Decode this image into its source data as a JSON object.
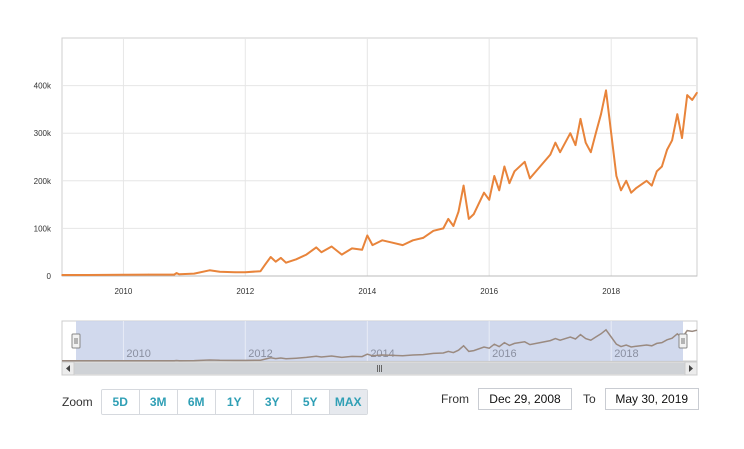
{
  "chart_data": {
    "type": "line",
    "title": "",
    "xlabel": "",
    "ylabel": "",
    "x_range": [
      "2008-12-29",
      "2019-05-30"
    ],
    "ylim": [
      0,
      500000
    ],
    "y_ticks": [
      {
        "value": 0,
        "label": "0"
      },
      {
        "value": 100000,
        "label": "100k"
      },
      {
        "value": 200000,
        "label": "200k"
      },
      {
        "value": 300000,
        "label": "300k"
      },
      {
        "value": 400000,
        "label": "400k"
      }
    ],
    "x_ticks": [
      {
        "value": "2010-01-01",
        "label": "2010"
      },
      {
        "value": "2012-01-01",
        "label": "2012"
      },
      {
        "value": "2014-01-01",
        "label": "2014"
      },
      {
        "value": "2016-01-01",
        "label": "2016"
      },
      {
        "value": "2018-01-01",
        "label": "2018"
      }
    ],
    "grid": true,
    "series": [
      {
        "color": "#e8843b",
        "points": [
          [
            "2008-12-29",
            2000
          ],
          [
            "2009-06-01",
            2000
          ],
          [
            "2010-01-01",
            2500
          ],
          [
            "2010-06-01",
            3000
          ],
          [
            "2010-11-01",
            3000
          ],
          [
            "2010-11-15",
            6000
          ],
          [
            "2010-12-01",
            3500
          ],
          [
            "2011-03-01",
            5000
          ],
          [
            "2011-06-01",
            12000
          ],
          [
            "2011-08-01",
            9000
          ],
          [
            "2011-11-01",
            8000
          ],
          [
            "2012-01-01",
            8000
          ],
          [
            "2012-04-01",
            10000
          ],
          [
            "2012-05-01",
            25000
          ],
          [
            "2012-06-01",
            40000
          ],
          [
            "2012-07-01",
            30000
          ],
          [
            "2012-08-01",
            38000
          ],
          [
            "2012-09-01",
            28000
          ],
          [
            "2012-11-01",
            35000
          ],
          [
            "2013-01-01",
            45000
          ],
          [
            "2013-03-01",
            60000
          ],
          [
            "2013-04-01",
            50000
          ],
          [
            "2013-06-01",
            62000
          ],
          [
            "2013-08-01",
            45000
          ],
          [
            "2013-10-01",
            58000
          ],
          [
            "2013-12-01",
            55000
          ],
          [
            "2014-01-01",
            85000
          ],
          [
            "2014-02-01",
            65000
          ],
          [
            "2014-04-01",
            75000
          ],
          [
            "2014-06-01",
            70000
          ],
          [
            "2014-08-01",
            65000
          ],
          [
            "2014-10-01",
            75000
          ],
          [
            "2014-12-01",
            80000
          ],
          [
            "2015-02-01",
            95000
          ],
          [
            "2015-04-01",
            100000
          ],
          [
            "2015-05-01",
            120000
          ],
          [
            "2015-06-01",
            105000
          ],
          [
            "2015-07-01",
            135000
          ],
          [
            "2015-08-01",
            190000
          ],
          [
            "2015-09-01",
            120000
          ],
          [
            "2015-10-01",
            130000
          ],
          [
            "2015-12-01",
            175000
          ],
          [
            "2016-01-01",
            160000
          ],
          [
            "2016-02-01",
            210000
          ],
          [
            "2016-03-01",
            180000
          ],
          [
            "2016-04-01",
            230000
          ],
          [
            "2016-05-01",
            195000
          ],
          [
            "2016-06-01",
            220000
          ],
          [
            "2016-08-01",
            240000
          ],
          [
            "2016-09-01",
            205000
          ],
          [
            "2016-11-01",
            230000
          ],
          [
            "2017-01-01",
            255000
          ],
          [
            "2017-02-01",
            280000
          ],
          [
            "2017-03-01",
            260000
          ],
          [
            "2017-05-01",
            300000
          ],
          [
            "2017-06-01",
            275000
          ],
          [
            "2017-07-01",
            330000
          ],
          [
            "2017-08-01",
            280000
          ],
          [
            "2017-09-01",
            260000
          ],
          [
            "2017-10-01",
            300000
          ],
          [
            "2017-11-01",
            340000
          ],
          [
            "2017-12-01",
            390000
          ],
          [
            "2018-01-01",
            300000
          ],
          [
            "2018-02-01",
            210000
          ],
          [
            "2018-03-01",
            180000
          ],
          [
            "2018-04-01",
            200000
          ],
          [
            "2018-05-01",
            175000
          ],
          [
            "2018-06-01",
            185000
          ],
          [
            "2018-08-01",
            200000
          ],
          [
            "2018-09-01",
            190000
          ],
          [
            "2018-10-01",
            220000
          ],
          [
            "2018-11-01",
            230000
          ],
          [
            "2018-12-01",
            265000
          ],
          [
            "2019-01-01",
            285000
          ],
          [
            "2019-02-01",
            340000
          ],
          [
            "2019-03-01",
            290000
          ],
          [
            "2019-04-01",
            380000
          ],
          [
            "2019-05-01",
            370000
          ],
          [
            "2019-05-30",
            385000
          ]
        ]
      }
    ],
    "navigator": {
      "x_ticks": [
        {
          "value": "2010-01-01",
          "label": "2010"
        },
        {
          "value": "2012-01-01",
          "label": "2012"
        },
        {
          "value": "2014-01-01",
          "label": "2014"
        },
        {
          "value": "2016-01-01",
          "label": "2016"
        },
        {
          "value": "2018-01-01",
          "label": "2018"
        }
      ],
      "selected_range": [
        "2008-12-29",
        "2019-05-30"
      ],
      "mask_color": "#c9d2ea",
      "line_color": "#9a8a80"
    }
  },
  "zoom": {
    "label": "Zoom",
    "buttons": [
      "5D",
      "3M",
      "6M",
      "1Y",
      "3Y",
      "5Y",
      "MAX"
    ],
    "active": "MAX"
  },
  "range": {
    "from_label": "From",
    "from_value": "Dec 29, 2008",
    "to_label": "To",
    "to_value": "May 30, 2019"
  },
  "colors": {
    "accent": "#2f9fb5",
    "line": "#e8843b",
    "grid": "#e6e6e6"
  }
}
